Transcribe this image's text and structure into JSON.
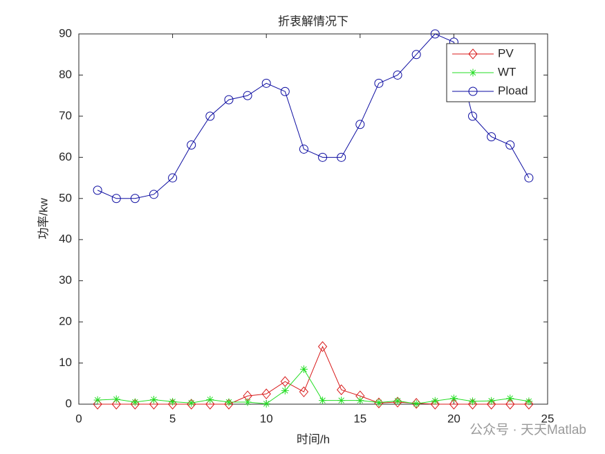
{
  "chart_data": {
    "type": "line",
    "title": "折衷解情况下",
    "x_label": "时间/h",
    "y_label": "功率/kw",
    "x": [
      1,
      2,
      3,
      4,
      5,
      6,
      7,
      8,
      9,
      10,
      11,
      12,
      13,
      14,
      15,
      16,
      17,
      18,
      19,
      20,
      21,
      22,
      23,
      24
    ],
    "series": [
      {
        "name": "PV",
        "color": "#d81818",
        "marker": "diamond",
        "values": [
          0,
          0,
          0,
          0,
          0,
          0,
          0,
          0,
          2,
          2.5,
          5.5,
          3,
          14,
          3.5,
          2,
          0.3,
          0.5,
          0.2,
          0,
          0,
          0,
          0,
          0,
          0
        ]
      },
      {
        "name": "WT",
        "color": "#22dd22",
        "marker": "asterisk",
        "values": [
          1,
          1.2,
          0.5,
          1.1,
          0.6,
          0.3,
          1.1,
          0.5,
          0.5,
          0.1,
          3.3,
          8.5,
          0.9,
          0.9,
          0.9,
          0.4,
          0.8,
          0.1,
          0.8,
          1.4,
          0.7,
          0.8,
          1.4,
          0.7
        ]
      },
      {
        "name": "Pload",
        "color": "#0a0aa0",
        "marker": "circle",
        "values": [
          52,
          50,
          50,
          51,
          55,
          63,
          70,
          74,
          75,
          78,
          76,
          62,
          60,
          60,
          68,
          78,
          80,
          85,
          90,
          88,
          70,
          65,
          63,
          55
        ]
      }
    ],
    "xlim": [
      0,
      25
    ],
    "xticks": [
      0,
      5,
      10,
      15,
      20,
      25
    ],
    "ylim": [
      0,
      90
    ],
    "yticks": [
      0,
      10,
      20,
      30,
      40,
      50,
      60,
      70,
      80,
      90
    ],
    "legend": "northeast",
    "grid": false,
    "watermark": "公众号 · 天天Matlab"
  }
}
